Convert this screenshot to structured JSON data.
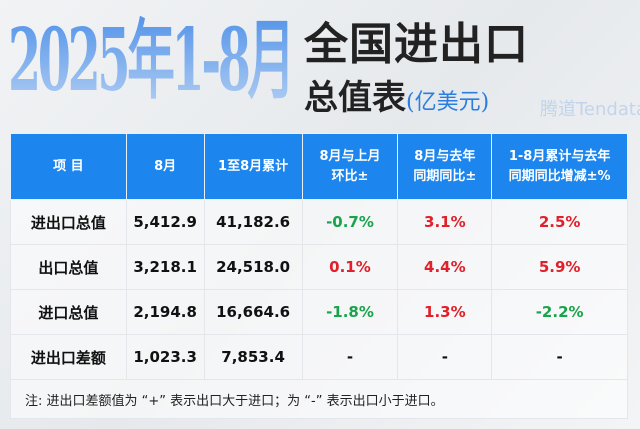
{
  "title": {
    "period": "2025年1-8月",
    "line1": "全国进出口",
    "line2": "总值表",
    "unit": "(亿美元)"
  },
  "table": {
    "headers": [
      "项  目",
      "8月",
      "1至8月累计",
      "8月与上月\n环比±",
      "8月与去年\n同期同比±",
      "1-8月累计与去年\n同期同比增减±%"
    ],
    "rows": [
      {
        "item": "进出口总值",
        "aug": "5,412.9",
        "cum": "41,182.6",
        "mom": "-0.7%",
        "yoy": "3.1%",
        "cum_yoy": "2.5%"
      },
      {
        "item": "出口总值",
        "aug": "3,218.1",
        "cum": "24,518.0",
        "mom": "0.1%",
        "yoy": "4.4%",
        "cum_yoy": "5.9%"
      },
      {
        "item": "进口总值",
        "aug": "2,194.8",
        "cum": "16,664.6",
        "mom": "-1.8%",
        "yoy": "1.3%",
        "cum_yoy": "-2.2%"
      },
      {
        "item": "进出口差额",
        "aug": "1,023.3",
        "cum": "7,853.4",
        "mom": "-",
        "yoy": "-",
        "cum_yoy": "-"
      }
    ],
    "note": "注: 进出口差额值为 “+” 表示出口大于进口；为 “-” 表示出口小于进口。"
  },
  "watermark": "腾道Tendata",
  "colors": {
    "header": "#1d86ee",
    "negative": "#1aa34a",
    "positive": "#e0202a"
  }
}
